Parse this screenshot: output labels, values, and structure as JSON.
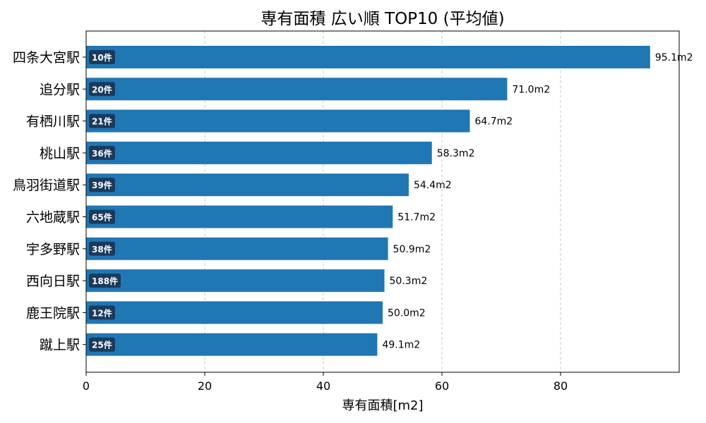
{
  "chart_data": {
    "type": "bar",
    "orientation": "horizontal",
    "title": "専有面積 広い順 TOP10 (平均値)",
    "xlabel": "専有面積[m2]",
    "ylabel": "",
    "xlim": [
      0,
      100
    ],
    "xticks": [
      "0",
      "20",
      "40",
      "60",
      "80"
    ],
    "grid": "x-dashed",
    "categories": [
      "四条大宮駅",
      "追分駅",
      "有栖川駅",
      "桃山駅",
      "鳥羽街道駅",
      "六地蔵駅",
      "宇多野駅",
      "西向日駅",
      "鹿王院駅",
      "蹴上駅"
    ],
    "values": [
      95.1,
      71.0,
      64.7,
      58.3,
      54.4,
      51.7,
      50.9,
      50.3,
      50.0,
      49.1
    ],
    "value_labels": [
      "95.1m2",
      "71.0m2",
      "64.7m2",
      "58.3m2",
      "54.4m2",
      "51.7m2",
      "50.9m2",
      "50.3m2",
      "50.0m2",
      "49.1m2"
    ],
    "count_labels": [
      "10件",
      "20件",
      "21件",
      "36件",
      "39件",
      "65件",
      "38件",
      "188件",
      "12件",
      "25件"
    ],
    "colors": {
      "bar": "#1f77b4",
      "badge": "#1a3a5c",
      "grid": "#c8c8c8"
    }
  }
}
